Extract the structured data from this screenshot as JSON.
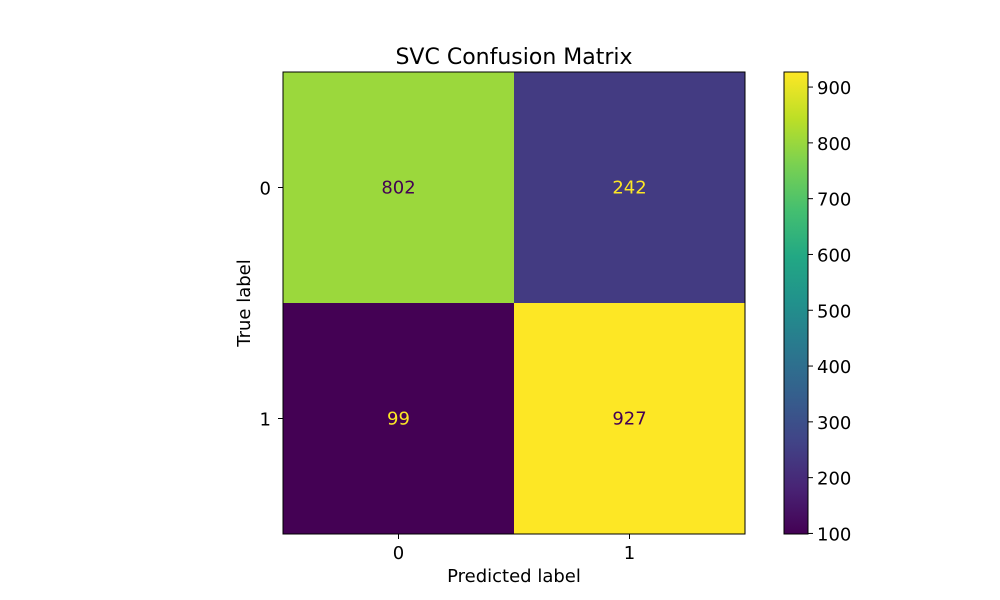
{
  "chart_data": {
    "type": "heatmap",
    "title": "SVC Confusion Matrix",
    "xlabel": "Predicted label",
    "ylabel": "True label",
    "x_categories": [
      "0",
      "1"
    ],
    "y_categories": [
      "0",
      "1"
    ],
    "values": [
      [
        802,
        242
      ],
      [
        99,
        927
      ]
    ],
    "cell_labels": [
      [
        "802",
        "242"
      ],
      [
        "99",
        "927"
      ]
    ],
    "colormap": "viridis",
    "colorbar": {
      "range": [
        99,
        927
      ],
      "ticks": [
        100,
        200,
        300,
        400,
        500,
        600,
        700,
        800,
        900
      ],
      "tick_labels": [
        "100",
        "200",
        "300",
        "400",
        "500",
        "600",
        "700",
        "800",
        "900"
      ]
    },
    "text_colors": {
      "dark": "#440154",
      "light": "#fde725"
    }
  }
}
